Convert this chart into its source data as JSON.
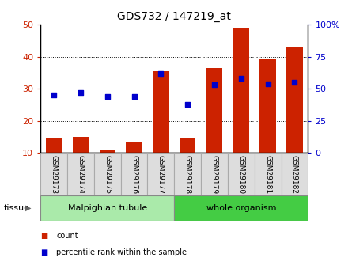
{
  "title": "GDS732 / 147219_at",
  "samples": [
    "GSM29173",
    "GSM29174",
    "GSM29175",
    "GSM29176",
    "GSM29177",
    "GSM29178",
    "GSM29179",
    "GSM29180",
    "GSM29181",
    "GSM29182"
  ],
  "counts": [
    14.5,
    15.0,
    11.0,
    13.5,
    35.5,
    14.5,
    36.5,
    49.0,
    39.5,
    43.0
  ],
  "percentiles": [
    45,
    47,
    44,
    44,
    62,
    38,
    53,
    58,
    54,
    55
  ],
  "tissue_groups": [
    {
      "label": "Malpighian tubule",
      "start": 0,
      "end": 5,
      "color": "#aaeaaa"
    },
    {
      "label": "whole organism",
      "start": 5,
      "end": 10,
      "color": "#44cc44"
    }
  ],
  "bar_color": "#cc2200",
  "dot_color": "#0000cc",
  "ylim_left": [
    10,
    50
  ],
  "ylim_right": [
    0,
    100
  ],
  "yticks_left": [
    10,
    20,
    30,
    40,
    50
  ],
  "yticks_right": [
    0,
    25,
    50,
    75,
    100
  ],
  "axis_color_left": "#cc2200",
  "axis_color_right": "#0000cc",
  "tissue_label": "tissue",
  "legend_count_label": "count",
  "legend_pct_label": "percentile rank within the sample",
  "label_box_color": "#dddddd",
  "label_box_edge": "#aaaaaa"
}
